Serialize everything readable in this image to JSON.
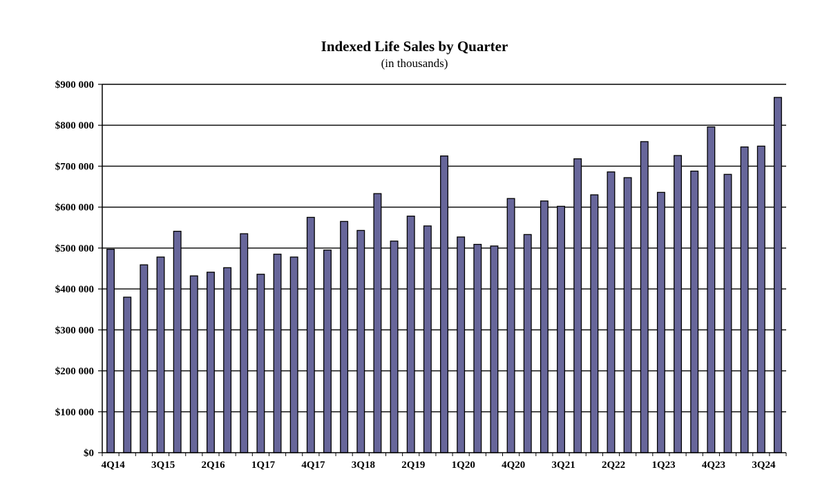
{
  "chart_data": {
    "type": "bar",
    "title": "Indexed Life Sales by Quarter",
    "subtitle": "(in thousands)",
    "xlabel": "",
    "ylabel": "",
    "ylim": [
      0,
      900000
    ],
    "yticks": [
      0,
      100000,
      200000,
      300000,
      400000,
      500000,
      600000,
      700000,
      800000,
      900000
    ],
    "ytick_labels": [
      "$0",
      "$100 000",
      "$200 000",
      "$300 000",
      "$400 000",
      "$500 000",
      "$600 000",
      "$700 000",
      "$800 000",
      "$900 000"
    ],
    "grid": true,
    "legend": "none",
    "bar_color": "#67669a",
    "categories": [
      "4Q14",
      "1Q15",
      "2Q15",
      "3Q15",
      "4Q15",
      "1Q16",
      "2Q16",
      "3Q16",
      "4Q16",
      "1Q17",
      "2Q17",
      "3Q17",
      "4Q17",
      "1Q18",
      "2Q18",
      "3Q18",
      "4Q18",
      "1Q19",
      "2Q19",
      "3Q19",
      "4Q19",
      "1Q20",
      "2Q20",
      "3Q20",
      "4Q20",
      "1Q21",
      "2Q21",
      "3Q21",
      "4Q21",
      "1Q22",
      "2Q22",
      "3Q22",
      "4Q22",
      "1Q23",
      "2Q23",
      "3Q23",
      "4Q23",
      "1Q24",
      "2Q24",
      "3Q24",
      "4Q24"
    ],
    "shown_x_labels": [
      "4Q14",
      "3Q15",
      "2Q16",
      "1Q17",
      "4Q17",
      "3Q18",
      "2Q19",
      "1Q20",
      "4Q20",
      "3Q21",
      "2Q22",
      "1Q23",
      "4Q23",
      "3Q24"
    ],
    "values": [
      497000,
      380000,
      459000,
      478000,
      541000,
      432000,
      441000,
      452000,
      535000,
      436000,
      485000,
      478000,
      575000,
      495000,
      565000,
      543000,
      633000,
      517000,
      578000,
      554000,
      725000,
      527000,
      509000,
      505000,
      621000,
      533000,
      615000,
      602000,
      718000,
      630000,
      686000,
      672000,
      760000,
      636000,
      726000,
      688000,
      796000,
      680000,
      747000,
      749000,
      868000
    ]
  }
}
